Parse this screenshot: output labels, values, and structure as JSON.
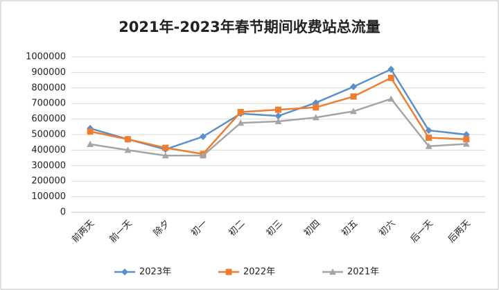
{
  "chart_data": {
    "type": "line",
    "title": "2021年-2023年春节期间收费站总流量",
    "categories": [
      "前两天",
      "前一天",
      "除夕",
      "初一",
      "初二",
      "初三",
      "初四",
      "初五",
      "初六",
      "后一天",
      "后两天"
    ],
    "series": [
      {
        "name": "2023年",
        "color": "#5b8fc9",
        "marker": "diamond",
        "values": [
          540000,
          470000,
          405000,
          487000,
          635000,
          620000,
          705000,
          808000,
          920000,
          527000,
          500000
        ]
      },
      {
        "name": "2022年",
        "color": "#ed7d31",
        "marker": "square",
        "values": [
          520000,
          470000,
          415000,
          375000,
          645000,
          660000,
          675000,
          745000,
          865000,
          480000,
          470000
        ]
      },
      {
        "name": "2021年",
        "color": "#a5a5a5",
        "marker": "triangle",
        "values": [
          438000,
          400000,
          365000,
          365000,
          575000,
          585000,
          610000,
          650000,
          730000,
          425000,
          440000
        ]
      }
    ],
    "ylim": [
      0,
      1000000
    ],
    "yticks": [
      0,
      100000,
      200000,
      300000,
      400000,
      500000,
      600000,
      700000,
      800000,
      900000,
      1000000
    ],
    "grid": true,
    "legend": "bottom"
  }
}
